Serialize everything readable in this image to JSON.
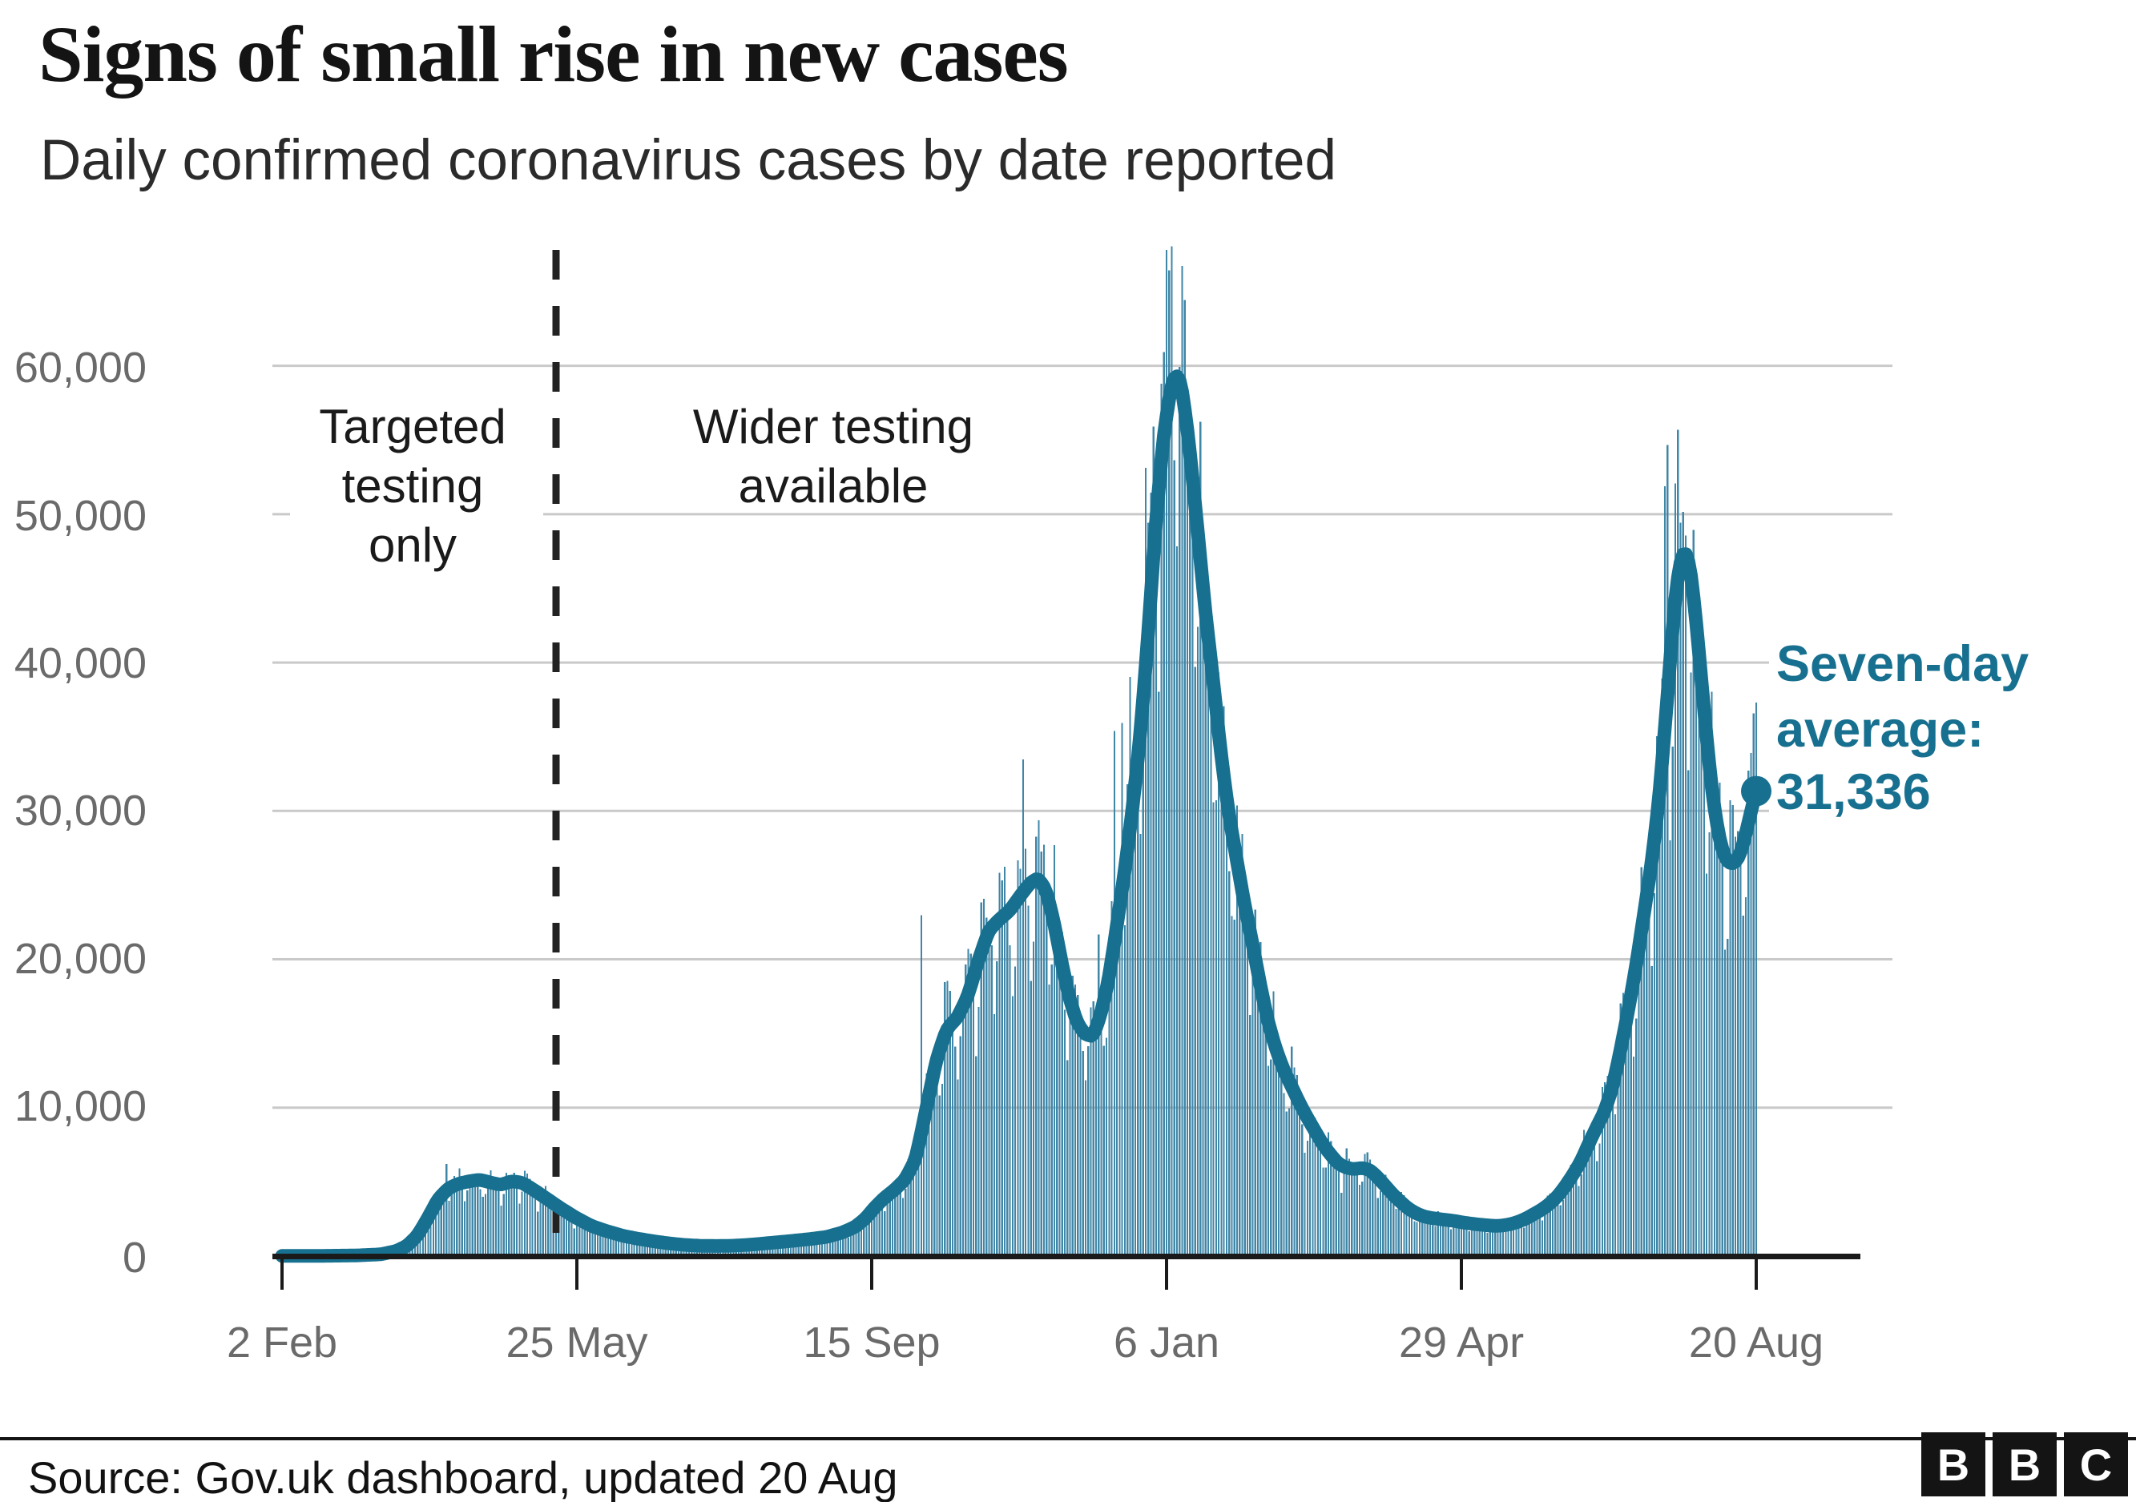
{
  "title": "Signs of small rise in new cases",
  "subtitle": "Daily confirmed coronavirus cases by date reported",
  "annotations": {
    "targeted": {
      "line1": "Targeted",
      "line2": "testing",
      "line3": "only"
    },
    "wider": {
      "line1": "Wider testing",
      "line2": "available"
    },
    "seven_day": {
      "line1": "Seven-day",
      "line2": "average:",
      "line3": "31,336"
    }
  },
  "footer": {
    "source": "Source: Gov.uk dashboard, updated 20 Aug",
    "logo": [
      "B",
      "B",
      "C"
    ]
  },
  "chart_data": {
    "type": "bar+line",
    "title": "Signs of small rise in new cases",
    "subtitle": "Daily confirmed coronavirus cases by date reported",
    "x_axis": {
      "start_label": "2 Feb",
      "end_label": "20 Aug",
      "tick_labels": [
        "2 Feb",
        "25 May",
        "15 Sep",
        "6 Jan",
        "29 Apr",
        "20 Aug"
      ],
      "tick_days": [
        0,
        113,
        226,
        339,
        452,
        565
      ],
      "days_total": 565
    },
    "y_axis": {
      "tick_labels": [
        "60,000",
        "50,000",
        "40,000",
        "30,000",
        "20,000",
        "10,000",
        "0"
      ],
      "tick_values": [
        60000,
        50000,
        40000,
        30000,
        20000,
        10000,
        0
      ],
      "range": [
        0,
        68053
      ],
      "gridlines": true
    },
    "annotations": {
      "dashed_line_day": 105,
      "targeted_text": "Targeted testing only",
      "wider_text": "Wider testing available",
      "seven_day_label": "Seven-day average: 31,336",
      "seven_day_value": 31336
    },
    "colors": {
      "bar": "#3f86a7",
      "line": "#17708f",
      "grid": "#c9c9c9",
      "axis": "#1a1a1a",
      "tick_text": "#6a6a6a",
      "dashed": "#222222"
    },
    "legend": "none",
    "series": [
      {
        "name": "Daily confirmed cases",
        "type": "bar",
        "color": "#3f86a7",
        "weekday_factors": [
          0.76,
          0.88,
          1.14,
          1.12,
          1.08,
          1.04,
          0.94
        ],
        "noise_amplitude": 0.09,
        "value_cap": 68100,
        "overrides": {
          "63": 6199,
          "68": 5903,
          "245": 22961,
          "284": 33470,
          "313": 21672,
          "319": 35383,
          "322": 35928,
          "325": 39036,
          "331": 53135,
          "334": 55892,
          "337": 58784,
          "338": 60916,
          "341": 68053,
          "344": 59937,
          "347": 54940,
          "530": 51870,
          "531": 54674,
          "538": 48553,
          "563": 33904,
          "564": 36572,
          "565": 37314
        }
      },
      {
        "name": "Seven-day average",
        "type": "line",
        "color": "#17708f",
        "end_value": 31336,
        "points": [
          [
            0,
            10
          ],
          [
            14,
            15
          ],
          [
            28,
            40
          ],
          [
            38,
            120
          ],
          [
            44,
            350
          ],
          [
            48,
            700
          ],
          [
            52,
            1400
          ],
          [
            56,
            2600
          ],
          [
            60,
            3900
          ],
          [
            64,
            4600
          ],
          [
            68,
            4900
          ],
          [
            72,
            5050
          ],
          [
            76,
            5150
          ],
          [
            80,
            4950
          ],
          [
            84,
            4800
          ],
          [
            88,
            5050
          ],
          [
            92,
            4950
          ],
          [
            97,
            4400
          ],
          [
            102,
            3800
          ],
          [
            107,
            3200
          ],
          [
            113,
            2550
          ],
          [
            119,
            2000
          ],
          [
            125,
            1650
          ],
          [
            131,
            1350
          ],
          [
            137,
            1150
          ],
          [
            143,
            980
          ],
          [
            149,
            840
          ],
          [
            155,
            740
          ],
          [
            161,
            690
          ],
          [
            167,
            680
          ],
          [
            173,
            700
          ],
          [
            179,
            760
          ],
          [
            185,
            850
          ],
          [
            191,
            950
          ],
          [
            197,
            1050
          ],
          [
            203,
            1160
          ],
          [
            209,
            1300
          ],
          [
            215,
            1600
          ],
          [
            220,
            2000
          ],
          [
            224,
            2600
          ],
          [
            227,
            3250
          ],
          [
            231,
            3950
          ],
          [
            235,
            4500
          ],
          [
            239,
            5200
          ],
          [
            243,
            6600
          ],
          [
            247,
            10000
          ],
          [
            251,
            13400
          ],
          [
            255,
            15400
          ],
          [
            259,
            16100
          ],
          [
            263,
            17600
          ],
          [
            267,
            20000
          ],
          [
            271,
            22000
          ],
          [
            275,
            22700
          ],
          [
            279,
            23300
          ],
          [
            283,
            24300
          ],
          [
            287,
            25200
          ],
          [
            290,
            25500
          ],
          [
            293,
            24600
          ],
          [
            296,
            22400
          ],
          [
            299,
            19600
          ],
          [
            302,
            17200
          ],
          [
            305,
            15600
          ],
          [
            308,
            14900
          ],
          [
            311,
            14800
          ],
          [
            314,
            16400
          ],
          [
            317,
            18800
          ],
          [
            320,
            22300
          ],
          [
            323,
            26000
          ],
          [
            326,
            30200
          ],
          [
            329,
            35200
          ],
          [
            332,
            42000
          ],
          [
            335,
            49800
          ],
          [
            338,
            55600
          ],
          [
            341,
            58900
          ],
          [
            343,
            59600
          ],
          [
            345,
            58600
          ],
          [
            348,
            54200
          ],
          [
            351,
            48800
          ],
          [
            354,
            43200
          ],
          [
            357,
            38600
          ],
          [
            360,
            33600
          ],
          [
            363,
            29600
          ],
          [
            366,
            26600
          ],
          [
            369,
            23600
          ],
          [
            372,
            21000
          ],
          [
            375,
            18200
          ],
          [
            378,
            15700
          ],
          [
            381,
            13900
          ],
          [
            384,
            12500
          ],
          [
            387,
            11400
          ],
          [
            390,
            10300
          ],
          [
            393,
            9300
          ],
          [
            396,
            8400
          ],
          [
            399,
            7500
          ],
          [
            402,
            6800
          ],
          [
            405,
            6200
          ],
          [
            408,
            5950
          ],
          [
            411,
            5850
          ],
          [
            414,
            5950
          ],
          [
            417,
            5800
          ],
          [
            420,
            5300
          ],
          [
            423,
            4700
          ],
          [
            426,
            4100
          ],
          [
            429,
            3600
          ],
          [
            432,
            3150
          ],
          [
            435,
            2850
          ],
          [
            438,
            2650
          ],
          [
            441,
            2550
          ],
          [
            444,
            2480
          ],
          [
            447,
            2420
          ],
          [
            450,
            2350
          ],
          [
            453,
            2250
          ],
          [
            456,
            2180
          ],
          [
            459,
            2120
          ],
          [
            462,
            2070
          ],
          [
            465,
            2030
          ],
          [
            468,
            2060
          ],
          [
            471,
            2160
          ],
          [
            474,
            2320
          ],
          [
            477,
            2550
          ],
          [
            480,
            2850
          ],
          [
            483,
            3150
          ],
          [
            486,
            3550
          ],
          [
            489,
            4050
          ],
          [
            492,
            4750
          ],
          [
            495,
            5550
          ],
          [
            498,
            6450
          ],
          [
            501,
            7650
          ],
          [
            504,
            8750
          ],
          [
            507,
            9800
          ],
          [
            510,
            11400
          ],
          [
            513,
            13900
          ],
          [
            516,
            16600
          ],
          [
            519,
            19600
          ],
          [
            522,
            23100
          ],
          [
            525,
            26600
          ],
          [
            528,
            31200
          ],
          [
            531,
            37800
          ],
          [
            534,
            44600
          ],
          [
            536,
            47100
          ],
          [
            538,
            47700
          ],
          [
            540,
            46200
          ],
          [
            542,
            42800
          ],
          [
            544,
            38800
          ],
          [
            546,
            34900
          ],
          [
            548,
            31400
          ],
          [
            550,
            28900
          ],
          [
            552,
            27300
          ],
          [
            554,
            26500
          ],
          [
            556,
            26400
          ],
          [
            558,
            26700
          ],
          [
            560,
            27700
          ],
          [
            562,
            29200
          ],
          [
            564,
            30700
          ],
          [
            565,
            31336
          ]
        ]
      }
    ]
  }
}
